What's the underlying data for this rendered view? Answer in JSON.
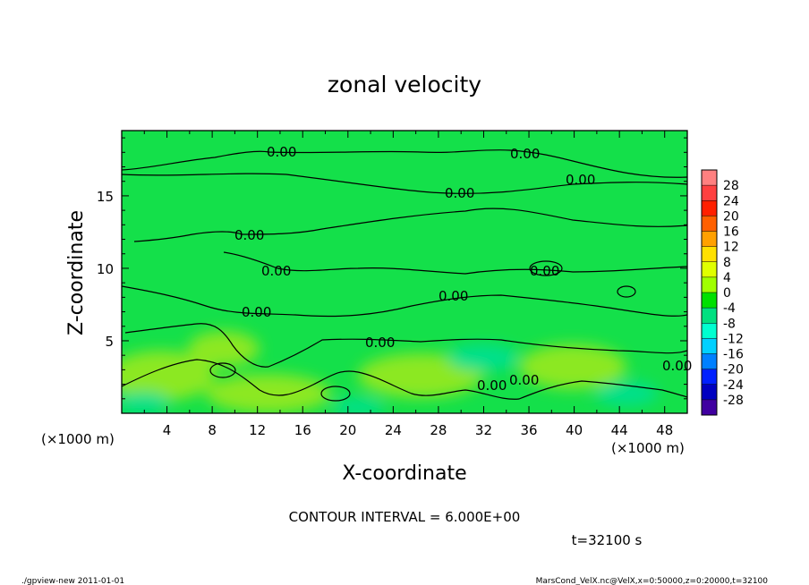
{
  "chart_data": {
    "type": "heatmap",
    "title": "zonal velocity",
    "xlabel": "X-coordinate",
    "ylabel": "Z-coordinate",
    "x_unit": "(×1000 m)",
    "xlim": [
      0,
      50
    ],
    "ylim": [
      0,
      19.5
    ],
    "xticks": [
      4,
      8,
      12,
      16,
      20,
      24,
      28,
      32,
      36,
      40,
      44,
      48
    ],
    "yticks": [
      5,
      10,
      15
    ],
    "contour_label": "0.00",
    "contour_interval_text": "CONTOUR INTERVAL = 6.000E+00",
    "time_text": "t=32100 s",
    "colorbar": {
      "levels": [
        28,
        24,
        20,
        16,
        12,
        8,
        4,
        0,
        -4,
        -8,
        -12,
        -16,
        -20,
        -24,
        -28
      ],
      "colors": [
        "#ff8080",
        "#ff4040",
        "#ff2000",
        "#ff6000",
        "#ffa000",
        "#ffe000",
        "#e0ff00",
        "#a0ff00",
        "#00e000",
        "#00e080",
        "#00ffd0",
        "#00d0ff",
        "#0080ff",
        "#0020ff",
        "#0000c0",
        "#4000a0"
      ]
    },
    "field_colors": {
      "base": "#14e04a",
      "light": "#8ce820",
      "cyan": "#00e08c"
    }
  },
  "footer": {
    "left": "./gpview-new   2011-01-01",
    "right": "MarsCond_VelX.nc@VelX,x=0:50000,z=0:20000,t=32100"
  }
}
